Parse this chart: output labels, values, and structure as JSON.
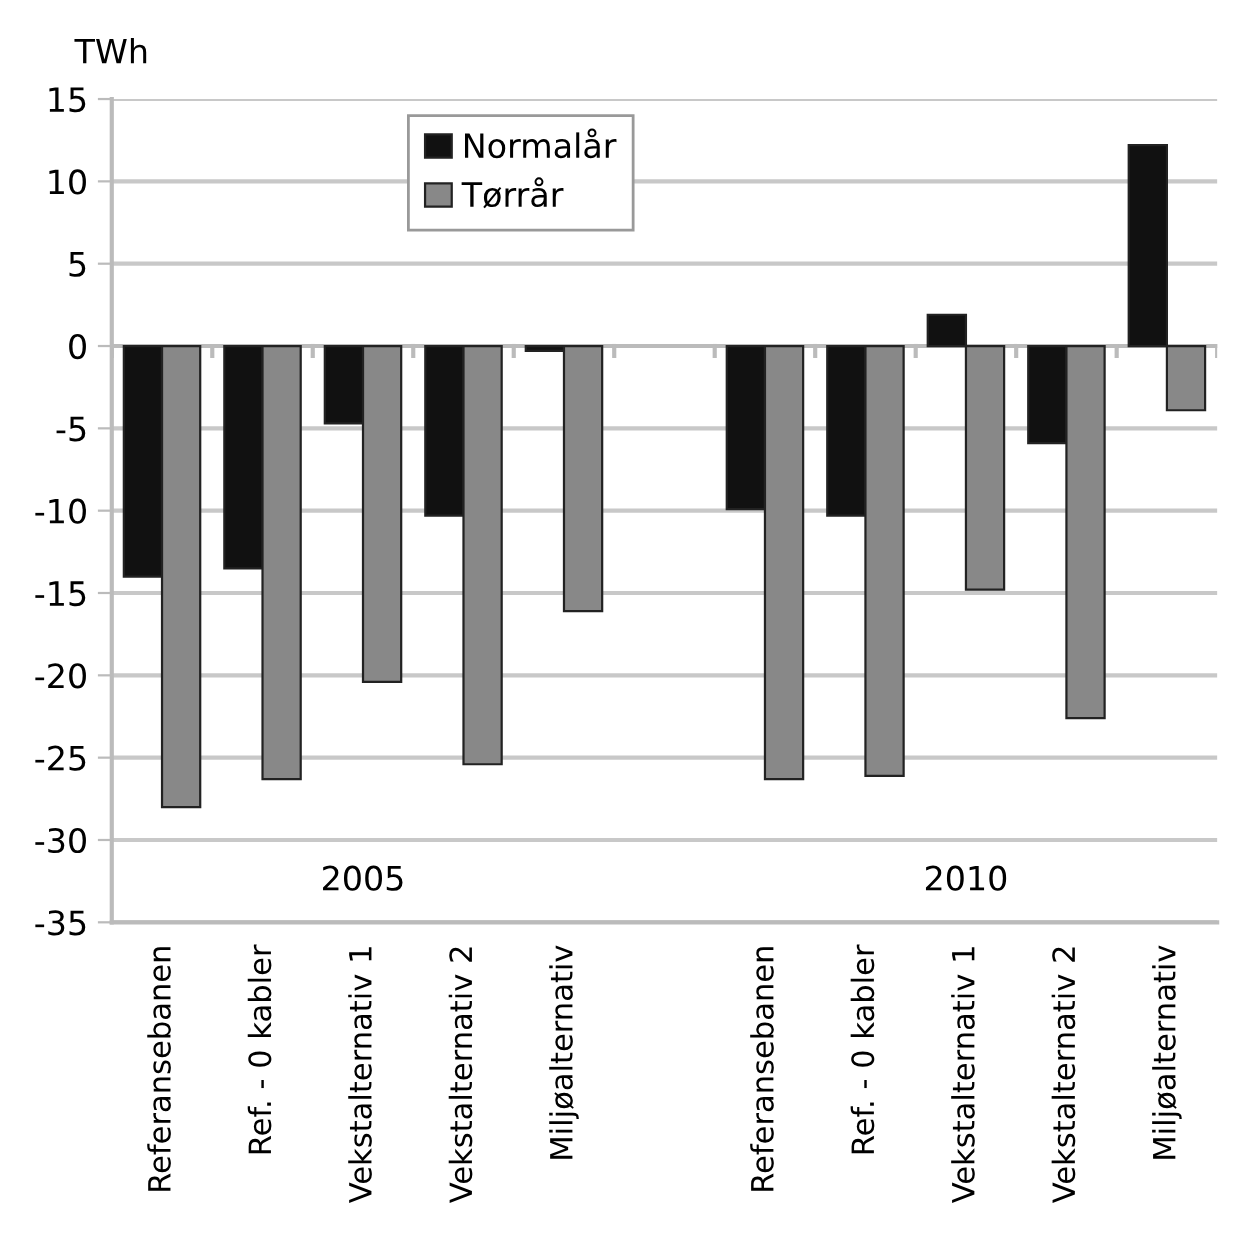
{
  "chart_data": {
    "type": "bar",
    "ylabel": "TWh",
    "categories": [
      "Referansebanen",
      "Ref. - 0 kabler",
      "Vekstalternativ 1",
      "Vekstalternativ 2",
      "Miljøalternativ",
      null,
      "Referansebanen",
      "Ref. - 0 kabler",
      "Vekstalternativ 1",
      "Vekstalternativ 2",
      "Miljøalternativ"
    ],
    "series": [
      {
        "name": "Normalår",
        "color": "#111111",
        "values": [
          -14.0,
          -13.5,
          -4.7,
          -10.3,
          -0.3,
          null,
          -9.9,
          -10.3,
          1.9,
          -5.9,
          12.2
        ]
      },
      {
        "name": "Tørrår",
        "color": "#888888",
        "values": [
          -28.0,
          -26.3,
          -20.4,
          -25.4,
          -16.1,
          null,
          -26.3,
          -26.1,
          -14.8,
          -22.6,
          -3.9
        ]
      }
    ],
    "ylim": [
      -35,
      15
    ],
    "yticks": [
      -35,
      -30,
      -25,
      -20,
      -15,
      -10,
      -5,
      0,
      5,
      10,
      15
    ],
    "grid": "y",
    "legend": "top",
    "annotations": [
      "2005",
      "2010"
    ]
  }
}
